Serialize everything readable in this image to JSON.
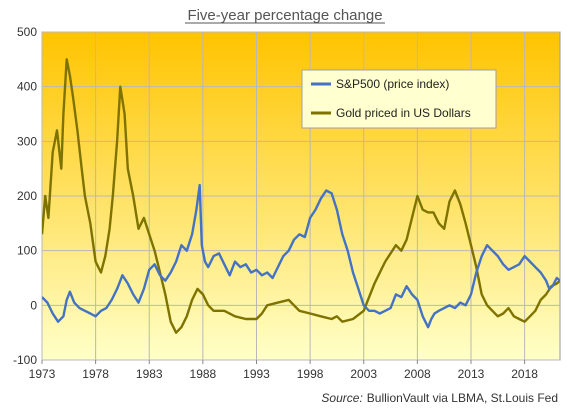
{
  "chart_data": {
    "type": "line",
    "title": "Five-year percentage change",
    "xlabel": "",
    "ylabel": "",
    "xlim": [
      1973,
      2021.3
    ],
    "ylim": [
      -100,
      500
    ],
    "x_ticks": [
      1973,
      1978,
      1983,
      1988,
      1993,
      1998,
      2003,
      2008,
      2013,
      2018
    ],
    "y_ticks": [
      -100,
      0,
      100,
      200,
      300,
      400,
      500
    ],
    "grid": true,
    "legend_position": "top-right",
    "background_gradient": [
      "#FFC400",
      "#FFFFC8"
    ],
    "source_label": "Source:",
    "source_text": "BullionVault via LBMA, St.Louis Fed",
    "series": [
      {
        "name": "S&P500 (price index)",
        "color": "#4472C4",
        "x": [
          1973.0,
          1973.5,
          1974.0,
          1974.5,
          1975.0,
          1975.3,
          1975.6,
          1976.0,
          1976.5,
          1977.0,
          1977.5,
          1978.0,
          1978.5,
          1979.0,
          1979.5,
          1980.0,
          1980.5,
          1981.0,
          1981.5,
          1982.0,
          1982.5,
          1983.0,
          1983.5,
          1984.0,
          1984.5,
          1985.0,
          1985.5,
          1986.0,
          1986.5,
          1987.0,
          1987.4,
          1987.7,
          1987.9,
          1988.2,
          1988.5,
          1989.0,
          1989.5,
          1990.0,
          1990.5,
          1991.0,
          1991.5,
          1992.0,
          1992.5,
          1993.0,
          1993.5,
          1994.0,
          1994.5,
          1995.0,
          1995.5,
          1996.0,
          1996.5,
          1997.0,
          1997.5,
          1998.0,
          1998.5,
          1999.0,
          1999.5,
          2000.0,
          2000.5,
          2001.0,
          2001.5,
          2002.0,
          2002.5,
          2003.0,
          2003.5,
          2004.0,
          2004.5,
          2005.0,
          2005.5,
          2006.0,
          2006.5,
          2007.0,
          2007.5,
          2008.0,
          2008.5,
          2009.0,
          2009.3,
          2009.6,
          2010.0,
          2010.5,
          2011.0,
          2011.5,
          2012.0,
          2012.5,
          2013.0,
          2013.5,
          2014.0,
          2014.5,
          2015.0,
          2015.5,
          2016.0,
          2016.5,
          2017.0,
          2017.5,
          2018.0,
          2018.5,
          2019.0,
          2019.5,
          2020.0,
          2020.3,
          2020.6,
          2021.0,
          2021.3
        ],
        "values": [
          15,
          5,
          -15,
          -30,
          -20,
          10,
          25,
          5,
          -5,
          -10,
          -15,
          -20,
          -10,
          -5,
          10,
          30,
          55,
          40,
          20,
          5,
          30,
          65,
          75,
          55,
          45,
          60,
          80,
          110,
          100,
          130,
          175,
          220,
          110,
          80,
          70,
          90,
          95,
          75,
          55,
          80,
          70,
          75,
          60,
          65,
          55,
          60,
          50,
          70,
          90,
          100,
          120,
          130,
          125,
          160,
          175,
          195,
          210,
          205,
          175,
          130,
          100,
          60,
          30,
          0,
          -10,
          -10,
          -15,
          -10,
          -5,
          20,
          15,
          35,
          20,
          10,
          -20,
          -40,
          -25,
          -15,
          -10,
          -5,
          0,
          -5,
          5,
          0,
          20,
          60,
          90,
          110,
          100,
          90,
          75,
          65,
          70,
          75,
          90,
          80,
          70,
          60,
          45,
          30,
          35,
          50,
          45
        ]
      },
      {
        "name": "Gold priced in US Dollars",
        "color": "#7F7300",
        "x": [
          1973.0,
          1973.3,
          1973.6,
          1974.0,
          1974.4,
          1974.8,
          1975.0,
          1975.3,
          1975.6,
          1975.9,
          1976.3,
          1976.7,
          1977.0,
          1977.5,
          1978.0,
          1978.5,
          1978.9,
          1979.3,
          1979.6,
          1980.0,
          1980.3,
          1980.7,
          1981.0,
          1981.5,
          1982.0,
          1982.5,
          1983.0,
          1983.5,
          1984.0,
          1984.5,
          1985.0,
          1985.5,
          1986.0,
          1986.5,
          1987.0,
          1987.5,
          1988.0,
          1988.5,
          1989.0,
          1990.0,
          1991.0,
          1992.0,
          1993.0,
          1993.5,
          1994.0,
          1995.0,
          1996.0,
          1996.5,
          1997.0,
          1998.0,
          1999.0,
          2000.0,
          2000.5,
          2001.0,
          2002.0,
          2003.0,
          2004.0,
          2005.0,
          2006.0,
          2006.5,
          2007.0,
          2008.0,
          2008.5,
          2009.0,
          2009.5,
          2010.0,
          2010.5,
          2011.0,
          2011.5,
          2012.0,
          2012.5,
          2013.0,
          2013.5,
          2014.0,
          2014.5,
          2015.0,
          2015.5,
          2016.0,
          2016.5,
          2017.0,
          2017.5,
          2018.0,
          2018.5,
          2019.0,
          2019.5,
          2020.0,
          2020.5,
          2021.0,
          2021.3
        ],
        "values": [
          130,
          200,
          160,
          280,
          320,
          250,
          350,
          450,
          420,
          380,
          320,
          250,
          200,
          150,
          80,
          60,
          90,
          140,
          200,
          300,
          400,
          350,
          250,
          200,
          140,
          160,
          130,
          100,
          60,
          20,
          -30,
          -50,
          -40,
          -20,
          10,
          30,
          20,
          0,
          -10,
          -10,
          -20,
          -25,
          -25,
          -15,
          0,
          5,
          10,
          0,
          -10,
          -15,
          -20,
          -25,
          -20,
          -30,
          -25,
          -10,
          40,
          80,
          110,
          100,
          120,
          200,
          175,
          170,
          170,
          150,
          140,
          190,
          210,
          185,
          150,
          110,
          70,
          20,
          0,
          -10,
          -20,
          -15,
          -5,
          -20,
          -25,
          -30,
          -20,
          -10,
          10,
          20,
          35,
          40,
          45
        ]
      }
    ]
  }
}
